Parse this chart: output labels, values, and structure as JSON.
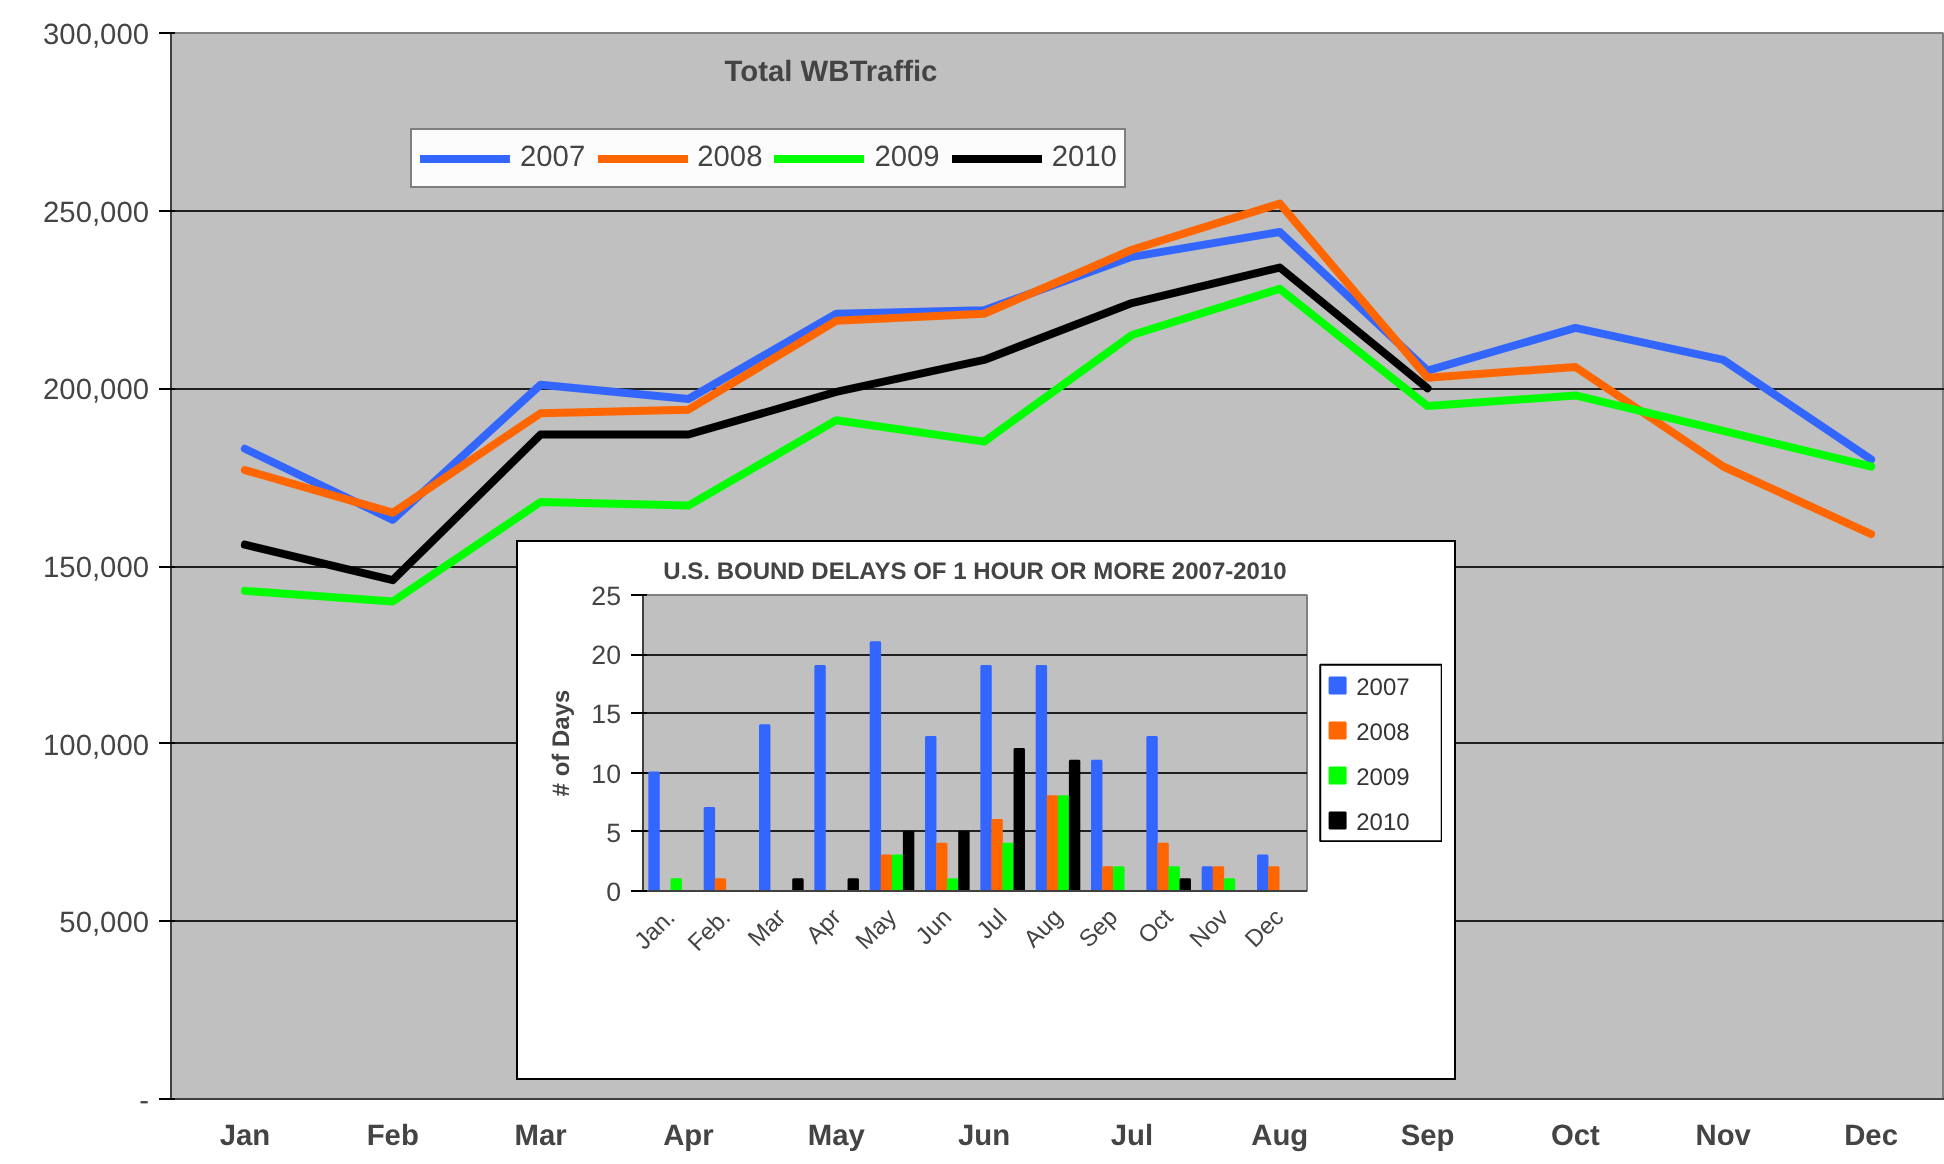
{
  "chart_data": [
    {
      "type": "line",
      "title": "Total WBTraffic",
      "categories": [
        "Jan",
        "Feb",
        "Mar",
        "Apr",
        "May",
        "Jun",
        "Jul",
        "Aug",
        "Sep",
        "Oct",
        "Nov",
        "Dec"
      ],
      "ylim": [
        0,
        300000
      ],
      "yticks": [
        {
          "value": 0,
          "label": "-"
        },
        {
          "value": 50000,
          "label": "50,000"
        },
        {
          "value": 100000,
          "label": "100,000"
        },
        {
          "value": 150000,
          "label": "150,000"
        },
        {
          "value": 200000,
          "label": "200,000"
        },
        {
          "value": 250000,
          "label": "250,000"
        },
        {
          "value": 300000,
          "label": "300,000"
        }
      ],
      "grid": "y",
      "legend": "top",
      "line_style": "solid",
      "series": [
        {
          "name": "2007",
          "color": "#3366ff",
          "values": [
            183000,
            163000,
            201000,
            197000,
            221000,
            222000,
            237000,
            244000,
            205000,
            217000,
            208000,
            180000
          ]
        },
        {
          "name": "2008",
          "color": "#ff6600",
          "values": [
            177000,
            165000,
            193000,
            194000,
            219000,
            221000,
            239000,
            252000,
            203000,
            206000,
            178000,
            159000
          ]
        },
        {
          "name": "2009",
          "color": "#00ff00",
          "values": [
            143000,
            140000,
            168000,
            167000,
            191000,
            185000,
            215000,
            228000,
            195000,
            198000,
            188000,
            178000
          ]
        },
        {
          "name": "2010",
          "color": "#000000",
          "values": [
            156000,
            146000,
            187000,
            187000,
            199000,
            208000,
            224000,
            234000,
            200000,
            null,
            null,
            null
          ]
        }
      ]
    },
    {
      "type": "bar",
      "title": "U.S. BOUND DELAYS OF 1 HOUR OR MORE 2007-2010",
      "ylabel": "# of Days",
      "categories": [
        "Jan.",
        "Feb.",
        "Mar",
        "Apr",
        "May",
        "Jun",
        "Jul",
        "Aug",
        "Sep",
        "Oct",
        "Nov",
        "Dec"
      ],
      "ylim": [
        0,
        25
      ],
      "yticks": [
        0,
        5,
        10,
        15,
        20,
        25
      ],
      "grid": "y",
      "legend": "right",
      "series": [
        {
          "name": "2007",
          "color": "#3366ff",
          "values": [
            10,
            7,
            14,
            19,
            21,
            13,
            19,
            19,
            11,
            13,
            2,
            3
          ]
        },
        {
          "name": "2008",
          "color": "#ff6600",
          "values": [
            null,
            1,
            null,
            null,
            3,
            4,
            6,
            8,
            2,
            4,
            2,
            2
          ]
        },
        {
          "name": "2009",
          "color": "#00ff00",
          "values": [
            1,
            null,
            null,
            null,
            3,
            1,
            4,
            8,
            2,
            2,
            1,
            null
          ]
        },
        {
          "name": "2010",
          "color": "#000000",
          "values": [
            null,
            null,
            1,
            1,
            5,
            5,
            12,
            11,
            null,
            1,
            null,
            null
          ]
        }
      ]
    }
  ]
}
